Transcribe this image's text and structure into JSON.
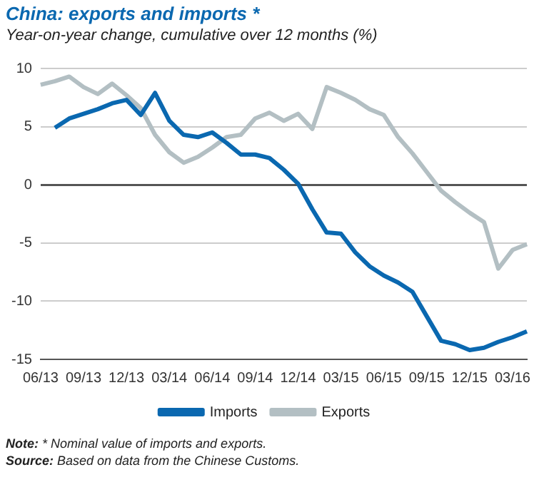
{
  "chart_data": {
    "type": "line",
    "title": "China: exports and imports *",
    "subtitle": "Year-on-year change, cumulative over 12 months (%)",
    "categories": [
      "06/13",
      null,
      null,
      "09/13",
      null,
      null,
      "12/13",
      null,
      null,
      "03/14",
      null,
      null,
      "06/14",
      null,
      null,
      "09/14",
      null,
      null,
      "12/14",
      null,
      null,
      "03/15",
      null,
      null,
      "06/15",
      null,
      null,
      "09/15",
      null,
      null,
      "12/15",
      null,
      null,
      "03/16",
      null
    ],
    "series": [
      {
        "name": "Imports",
        "color": "#0a68b0",
        "values": [
          null,
          4.9,
          5.7,
          6.1,
          6.5,
          7.0,
          7.3,
          6.0,
          7.9,
          5.5,
          4.3,
          4.1,
          4.5,
          3.6,
          2.6,
          2.6,
          2.3,
          1.3,
          0.1,
          -2.1,
          -4.1,
          -4.2,
          -5.8,
          -7.0,
          -7.8,
          -8.4,
          -9.2,
          -11.3,
          -13.4,
          -13.7,
          -14.2,
          -14.0,
          -13.5,
          -13.1,
          -12.6
        ]
      },
      {
        "name": "Exports",
        "color": "#b3bfc3",
        "values": [
          8.6,
          8.9,
          9.3,
          8.4,
          7.8,
          8.7,
          7.7,
          6.6,
          4.3,
          2.8,
          1.9,
          2.4,
          3.2,
          4.1,
          4.3,
          5.7,
          6.2,
          5.5,
          6.1,
          4.8,
          8.4,
          7.9,
          7.3,
          6.5,
          6.0,
          4.1,
          2.7,
          1.1,
          -0.5,
          -1.5,
          -2.4,
          -3.2,
          -7.2,
          -5.6,
          -5.1
        ]
      }
    ],
    "ylim": [
      -15,
      10
    ],
    "yticks": [
      -15,
      -10,
      -5,
      0,
      5,
      10
    ],
    "grid": "y",
    "legend": "bottom",
    "line_style": "solid",
    "marker": "none",
    "annotations": [
      "Note: * Nominal value of imports and exports.",
      "Source: Based on data from the Chinese Customs."
    ]
  }
}
